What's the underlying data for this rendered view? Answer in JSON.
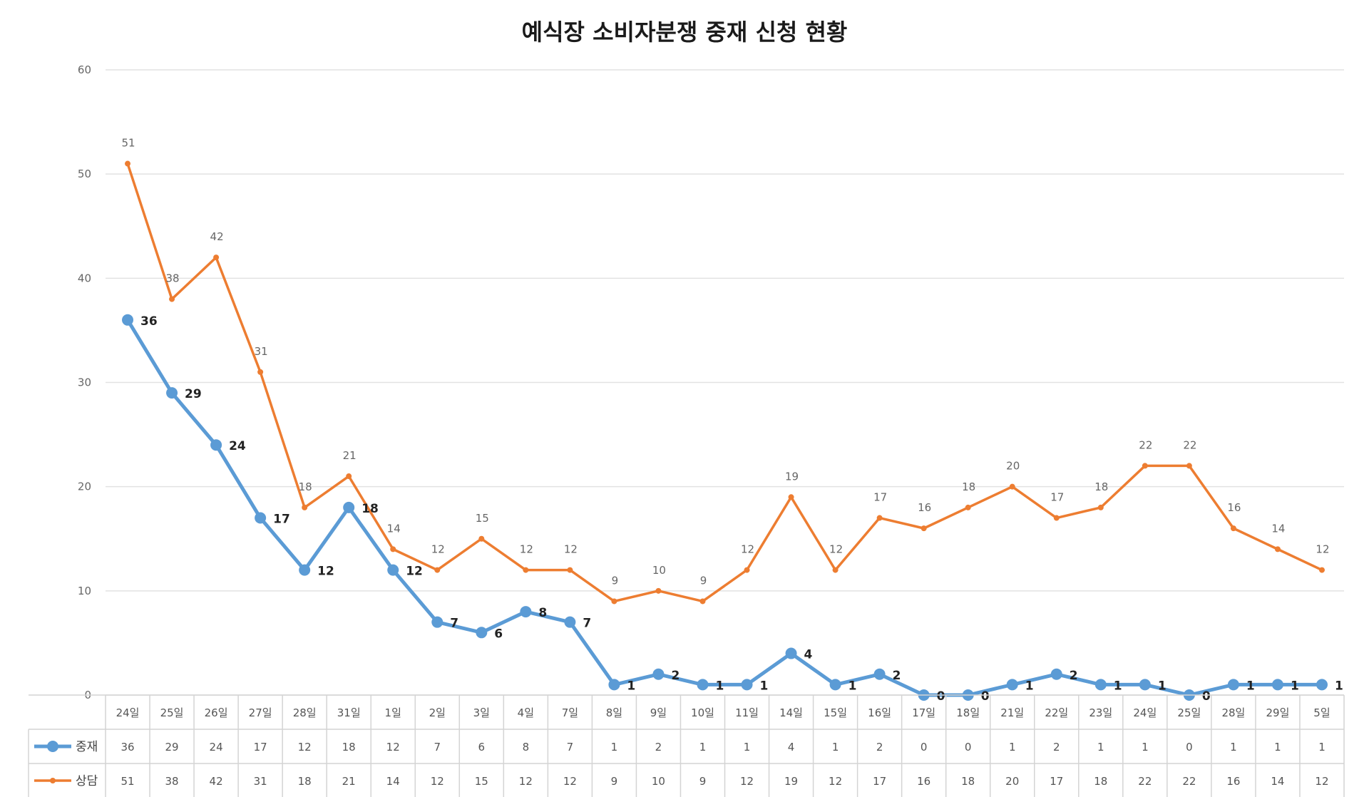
{
  "chart_data": {
    "type": "line",
    "title": "예식장 소비자분쟁 중재 신청 현황",
    "ylim": [
      0,
      60
    ],
    "yticks": [
      0,
      10,
      20,
      30,
      40,
      50,
      60
    ],
    "grid": true,
    "legend": "data-table-left",
    "categories": [
      "24일",
      "25일",
      "26일",
      "27일",
      "28일",
      "31일",
      "1일",
      "2일",
      "3일",
      "4일",
      "7일",
      "8일",
      "9일",
      "10일",
      "11일",
      "14일",
      "15일",
      "16일",
      "17일",
      "18일",
      "21일",
      "22일",
      "23일",
      "24일",
      "25일",
      "28일",
      "29일",
      "5일"
    ],
    "series": [
      {
        "name": "중재",
        "color": "#5b9bd5",
        "values": [
          36,
          29,
          24,
          17,
          12,
          18,
          12,
          7,
          6,
          8,
          7,
          1,
          2,
          1,
          1,
          4,
          1,
          2,
          0,
          0,
          1,
          2,
          1,
          1,
          0,
          1,
          1,
          1
        ]
      },
      {
        "name": "상담",
        "color": "#ed7d31",
        "values": [
          51,
          38,
          42,
          31,
          18,
          21,
          14,
          12,
          15,
          12,
          12,
          9,
          10,
          9,
          12,
          19,
          12,
          17,
          16,
          18,
          20,
          17,
          18,
          22,
          22,
          16,
          14,
          12
        ]
      }
    ]
  }
}
